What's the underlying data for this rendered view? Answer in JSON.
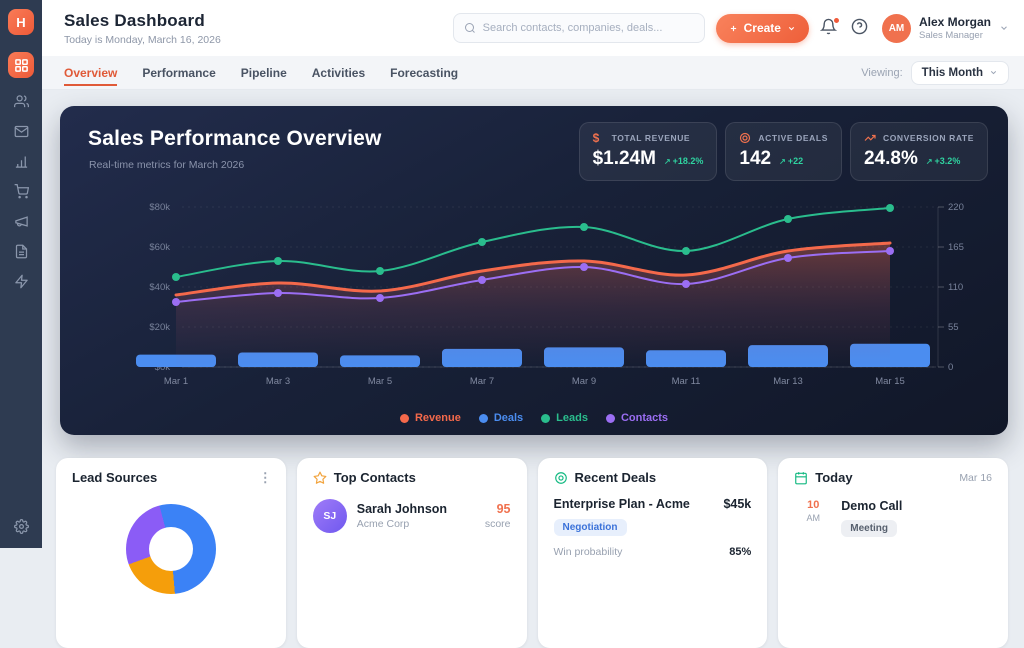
{
  "app": {
    "logo_letter": "H"
  },
  "sidebar": {
    "icons": [
      "users",
      "mail",
      "analytics",
      "cart",
      "megaphone",
      "documents",
      "automation"
    ],
    "active_icon": "dashboard-grid",
    "bottom_icon": "settings"
  },
  "header": {
    "title": "Sales Dashboard",
    "subtitle": "Today is Monday, March 16, 2026",
    "search_placeholder": "Search contacts, companies, deals...",
    "create_label": "Create",
    "user": {
      "initials": "AM",
      "name": "Alex Morgan",
      "role": "Sales Manager"
    }
  },
  "tabs": {
    "items": [
      "Overview",
      "Performance",
      "Pipeline",
      "Activities",
      "Forecasting"
    ],
    "active": "Overview",
    "viewing_label": "Viewing:",
    "viewing_value": "This Month"
  },
  "hero": {
    "title": "Sales Performance Overview",
    "subtitle": "Real-time metrics for March 2026",
    "kpis": [
      {
        "icon": "dollar-icon",
        "label": "TOTAL REVENUE",
        "value": "$1.24M",
        "arrow": "↗",
        "delta": "+18.2%"
      },
      {
        "icon": "target-icon",
        "label": "ACTIVE DEALS",
        "value": "142",
        "arrow": "↗",
        "delta": "+22"
      },
      {
        "icon": "trending-up-icon",
        "label": "CONVERSION RATE",
        "value": "24.8%",
        "arrow": "↗",
        "delta": "+3.2%"
      }
    ],
    "delta_color": "#2fd3a0"
  },
  "chart_data": {
    "type": "combo (bar + line + area-line)",
    "x": [
      "Mar 1",
      "Mar 3",
      "Mar 5",
      "Mar 7",
      "Mar 9",
      "Mar 11",
      "Mar 13",
      "Mar 15"
    ],
    "left_axis": {
      "ticks": [
        "$0k",
        "$20k",
        "$40k",
        "$60k",
        "$80k"
      ],
      "range": [
        0,
        80000
      ]
    },
    "right_axis": {
      "ticks": [
        "0",
        "55",
        "110",
        "165",
        "220"
      ],
      "range": [
        0,
        220
      ]
    },
    "grid": "horizontal dashed",
    "legend_position": "bottom-center",
    "series": [
      {
        "name": "Deals",
        "type": "bar",
        "axis": "right",
        "color": "#4b8df0",
        "values": [
          17,
          20,
          16,
          25,
          27,
          23,
          30,
          32
        ]
      },
      {
        "name": "Revenue",
        "type": "area-line",
        "axis": "left",
        "color": "#f4694b",
        "dots": false,
        "width": 3,
        "values": [
          36000,
          42000,
          38000,
          48000,
          53000,
          46000,
          58000,
          62000
        ]
      },
      {
        "name": "Contacts",
        "type": "line",
        "axis": "right",
        "color": "#9b6ef3",
        "dots": true,
        "width": 2,
        "values": [
          89,
          102,
          95,
          120,
          138,
          114,
          150,
          160
        ]
      },
      {
        "name": "Leads",
        "type": "line",
        "axis": "right",
        "color": "#2abd8d",
        "dots": true,
        "width": 2,
        "values": [
          124,
          146,
          132,
          172,
          192,
          160,
          204,
          218
        ]
      }
    ],
    "legend_order": [
      "Revenue",
      "Deals",
      "Leads",
      "Contacts"
    ]
  },
  "cards": {
    "lead_sources": {
      "title": "Lead Sources",
      "donut": {
        "start": 345,
        "segments": [
          {
            "color": "#3b82f6",
            "sweep": 190
          },
          {
            "color": "#f59e0b",
            "sweep": 75
          },
          {
            "color": "#8b5cf6",
            "sweep": 95
          }
        ]
      }
    },
    "top_contacts": {
      "title": "Top Contacts",
      "contacts": [
        {
          "initials": "SJ",
          "name": "Sarah Johnson",
          "company": "Acme Corp",
          "score": "95",
          "score_label": "score"
        }
      ]
    },
    "recent_deals": {
      "title": "Recent Deals",
      "deals": [
        {
          "name": "Enterprise Plan - Acme",
          "amount": "$45k",
          "stage": "Negotiation",
          "win_label": "Win probability",
          "win_value": "85%"
        }
      ]
    },
    "today": {
      "title": "Today",
      "date": "Mar 16",
      "events": [
        {
          "time": "10",
          "meridiem": "AM",
          "title": "Demo Call",
          "type": "Meeting"
        }
      ]
    }
  },
  "colors": {
    "brand_orange": "#ee5f3a",
    "panel_dark": "#16203a",
    "positive_green": "#2fd3a0"
  }
}
